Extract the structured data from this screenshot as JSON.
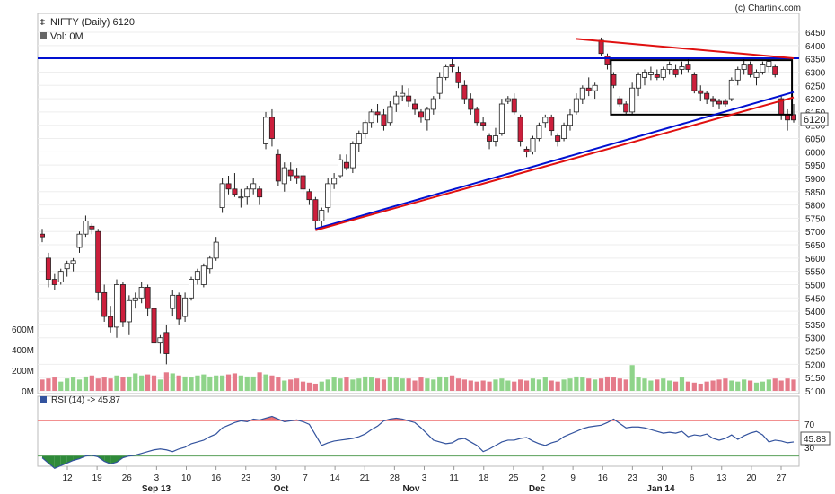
{
  "header": {
    "symbol_line": "NIFTY (Daily) 6120",
    "volume_line": "Vol: 0M",
    "credit": "(c) Chartink.com"
  },
  "rsi": {
    "legend": "RSI (14) -> 45.87",
    "current_badge": "45.88",
    "levels": [
      "70",
      "30"
    ]
  },
  "price_badge": "6120",
  "chart_data": [
    {
      "type": "candlestick",
      "title": "NIFTY (Daily) 6120",
      "y_ticks": [
        5100,
        5150,
        5200,
        5250,
        5300,
        5350,
        5400,
        5450,
        5500,
        5550,
        5600,
        5650,
        5700,
        5750,
        5800,
        5850,
        5900,
        5950,
        6000,
        6050,
        6100,
        6150,
        6200,
        6250,
        6300,
        6350,
        6400,
        6450
      ],
      "ylim": [
        5100,
        6470
      ],
      "x_ticks": [
        "12",
        "19",
        "26",
        "Sep 13",
        "10",
        "16",
        "23",
        "30",
        "Oct",
        "7",
        "14",
        "21",
        "28",
        "Nov",
        "3",
        "11",
        "18",
        "25",
        "Dec",
        "2",
        "9",
        "16",
        "23",
        "30",
        "6",
        "13",
        "20",
        "27",
        "Jan 14"
      ],
      "x_tick_labels_row1": [
        "12",
        "19",
        "26",
        "3",
        "10",
        "16",
        "23",
        "30",
        "7",
        "14",
        "21",
        "28",
        "3",
        "11",
        "18",
        "25",
        "2",
        "9",
        "16",
        "23",
        "30",
        "6",
        "13",
        "20",
        "27"
      ],
      "x_tick_labels_row2": [
        "Sep 13",
        "Oct",
        "Nov",
        "Dec",
        "Jan 14"
      ],
      "series": [
        {
          "values": [
            [
              5690,
              5710,
              5660,
              5680
            ],
            [
              5600,
              5620,
              5490,
              5520
            ],
            [
              5520,
              5540,
              5480,
              5500
            ],
            [
              5510,
              5560,
              5500,
              5550
            ],
            [
              5560,
              5590,
              5530,
              5580
            ],
            [
              5580,
              5600,
              5550,
              5590
            ],
            [
              5640,
              5700,
              5620,
              5690
            ],
            [
              5690,
              5760,
              5680,
              5740
            ],
            [
              5720,
              5730,
              5690,
              5710
            ],
            [
              5700,
              5710,
              5440,
              5470
            ],
            [
              5470,
              5500,
              5360,
              5380
            ],
            [
              5380,
              5420,
              5320,
              5340
            ],
            [
              5340,
              5520,
              5300,
              5500
            ],
            [
              5500,
              5510,
              5340,
              5360
            ],
            [
              5360,
              5460,
              5310,
              5440
            ],
            [
              5440,
              5470,
              5410,
              5450
            ],
            [
              5450,
              5510,
              5430,
              5490
            ],
            [
              5490,
              5500,
              5380,
              5410
            ],
            [
              5410,
              5420,
              5250,
              5280
            ],
            [
              5280,
              5310,
              5240,
              5300
            ],
            [
              5320,
              5350,
              5200,
              5240
            ],
            [
              5410,
              5480,
              5380,
              5460
            ],
            [
              5460,
              5470,
              5350,
              5370
            ],
            [
              5380,
              5470,
              5360,
              5450
            ],
            [
              5450,
              5530,
              5440,
              5520
            ],
            [
              5520,
              5560,
              5500,
              5550
            ],
            [
              5500,
              5580,
              5490,
              5570
            ],
            [
              5560,
              5610,
              5540,
              5600
            ],
            [
              5600,
              5680,
              5590,
              5660
            ],
            [
              5790,
              5900,
              5770,
              5880
            ],
            [
              5880,
              5910,
              5840,
              5860
            ],
            [
              5860,
              5920,
              5830,
              5840
            ],
            [
              5830,
              5860,
              5790,
              5830
            ],
            [
              5830,
              5870,
              5800,
              5860
            ],
            [
              5860,
              5900,
              5840,
              5880
            ],
            [
              5860,
              5870,
              5800,
              5830
            ],
            [
              6030,
              6150,
              6010,
              6130
            ],
            [
              6130,
              6160,
              6020,
              6050
            ],
            [
              5990,
              6010,
              5870,
              5890
            ],
            [
              5880,
              5960,
              5850,
              5940
            ],
            [
              5930,
              5960,
              5890,
              5910
            ],
            [
              5910,
              5940,
              5880,
              5900
            ],
            [
              5910,
              5930,
              5840,
              5860
            ],
            [
              5850,
              5860,
              5800,
              5820
            ],
            [
              5820,
              5830,
              5710,
              5740
            ],
            [
              5740,
              5790,
              5720,
              5780
            ],
            [
              5790,
              5900,
              5770,
              5880
            ],
            [
              5880,
              5920,
              5860,
              5900
            ],
            [
              5910,
              5990,
              5900,
              5970
            ],
            [
              5960,
              5990,
              5930,
              5940
            ],
            [
              5940,
              6040,
              5920,
              6030
            ],
            [
              6030,
              6080,
              6000,
              6070
            ],
            [
              6070,
              6120,
              6050,
              6110
            ],
            [
              6110,
              6160,
              6090,
              6150
            ],
            [
              6150,
              6180,
              6110,
              6140
            ],
            [
              6140,
              6160,
              6080,
              6100
            ],
            [
              6110,
              6190,
              6100,
              6170
            ],
            [
              6180,
              6230,
              6150,
              6210
            ],
            [
              6210,
              6250,
              6190,
              6220
            ],
            [
              6210,
              6240,
              6170,
              6190
            ],
            [
              6180,
              6200,
              6140,
              6160
            ],
            [
              6150,
              6160,
              6110,
              6130
            ],
            [
              6120,
              6170,
              6080,
              6160
            ],
            [
              6160,
              6210,
              6140,
              6200
            ],
            [
              6220,
              6300,
              6200,
              6280
            ],
            [
              6280,
              6330,
              6270,
              6320
            ],
            [
              6330,
              6350,
              6300,
              6320
            ],
            [
              6300,
              6320,
              6240,
              6260
            ],
            [
              6250,
              6270,
              6180,
              6200
            ],
            [
              6200,
              6220,
              6140,
              6160
            ],
            [
              6160,
              6170,
              6100,
              6110
            ],
            [
              6110,
              6130,
              6080,
              6100
            ],
            [
              6060,
              6070,
              6010,
              6040
            ],
            [
              6040,
              6090,
              6020,
              6060
            ],
            [
              6070,
              6200,
              6060,
              6180
            ],
            [
              6190,
              6210,
              6180,
              6200
            ],
            [
              6200,
              6220,
              6140,
              6150
            ],
            [
              6130,
              6140,
              6020,
              6040
            ],
            [
              6010,
              6020,
              5980,
              6000
            ],
            [
              6000,
              6060,
              5990,
              6050
            ],
            [
              6050,
              6110,
              6040,
              6100
            ],
            [
              6110,
              6140,
              6090,
              6130
            ],
            [
              6130,
              6140,
              6060,
              6080
            ],
            [
              6060,
              6070,
              6020,
              6040
            ],
            [
              6050,
              6110,
              6040,
              6100
            ],
            [
              6100,
              6160,
              6080,
              6140
            ],
            [
              6150,
              6220,
              6140,
              6200
            ],
            [
              6200,
              6250,
              6180,
              6240
            ],
            [
              6240,
              6280,
              6210,
              6230
            ],
            [
              6230,
              6260,
              6200,
              6250
            ],
            [
              6420,
              6430,
              6360,
              6370
            ],
            [
              6360,
              6370,
              6310,
              6330
            ],
            [
              6290,
              6300,
              6240,
              6250
            ],
            [
              6200,
              6210,
              6170,
              6180
            ],
            [
              6180,
              6190,
              6140,
              6150
            ],
            [
              6150,
              6260,
              6140,
              6240
            ],
            [
              6240,
              6300,
              6210,
              6290
            ],
            [
              6280,
              6310,
              6250,
              6300
            ],
            [
              6290,
              6320,
              6270,
              6300
            ],
            [
              6290,
              6310,
              6270,
              6280
            ],
            [
              6280,
              6320,
              6270,
              6310
            ],
            [
              6310,
              6340,
              6290,
              6330
            ],
            [
              6310,
              6330,
              6280,
              6290
            ],
            [
              6310,
              6340,
              6290,
              6320
            ],
            [
              6330,
              6350,
              6300,
              6310
            ],
            [
              6290,
              6300,
              6220,
              6230
            ],
            [
              6230,
              6250,
              6190,
              6220
            ],
            [
              6220,
              6230,
              6180,
              6200
            ],
            [
              6200,
              6210,
              6170,
              6190
            ],
            [
              6190,
              6200,
              6160,
              6180
            ],
            [
              6190,
              6200,
              6170,
              6180
            ],
            [
              6200,
              6280,
              6190,
              6270
            ],
            [
              6270,
              6320,
              6250,
              6310
            ],
            [
              6310,
              6350,
              6290,
              6330
            ],
            [
              6330,
              6340,
              6280,
              6290
            ],
            [
              6280,
              6310,
              6250,
              6300
            ],
            [
              6300,
              6340,
              6290,
              6330
            ],
            [
              6320,
              6350,
              6300,
              6340
            ],
            [
              6320,
              6330,
              6280,
              6290
            ],
            [
              6200,
              6210,
              6120,
              6140
            ],
            [
              6140,
              6160,
              6080,
              6120
            ],
            [
              6140,
              6180,
              6110,
              6120
            ]
          ]
        }
      ]
    },
    {
      "type": "bar",
      "title": "Vol: 0M",
      "y_ticks": [
        "0M",
        "200M",
        "400M",
        "600M"
      ],
      "ylim": [
        0,
        600
      ],
      "series": [
        {
          "values": [
            110,
            120,
            130,
            90,
            120,
            130,
            110,
            140,
            150,
            120,
            130,
            120,
            150,
            130,
            140,
            170,
            150,
            160,
            150,
            110,
            180,
            170,
            150,
            140,
            130,
            150,
            160,
            140,
            150,
            150,
            160,
            170,
            150,
            140,
            140,
            180,
            160,
            150,
            130,
            100,
            110,
            120,
            90,
            80,
            70,
            90,
            110,
            130,
            120,
            130,
            110,
            120,
            140,
            130,
            120,
            110,
            140,
            130,
            120,
            120,
            100,
            130,
            120,
            110,
            140,
            130,
            150,
            120,
            110,
            100,
            90,
            100,
            90,
            110,
            120,
            100,
            90,
            110,
            100,
            120,
            110,
            130,
            100,
            90,
            110,
            120,
            140,
            130,
            120,
            110,
            120,
            140,
            130,
            120,
            110,
            250,
            130,
            120,
            100,
            110,
            120,
            100,
            90,
            130,
            90,
            80,
            70,
            90,
            100,
            110,
            120,
            100,
            90,
            110,
            100,
            80,
            90,
            110,
            120,
            100,
            120,
            110
          ]
        }
      ]
    },
    {
      "type": "line",
      "title": "RSI (14) -> 45.87",
      "ylim": [
        0,
        100
      ],
      "levels": [
        70,
        30
      ],
      "series": [
        {
          "name": "RSI (14)",
          "values": [
            28,
            22,
            16,
            19,
            22,
            25,
            27,
            30,
            31,
            29,
            24,
            21,
            23,
            28,
            30,
            31,
            33,
            35,
            37,
            38,
            37,
            35,
            38,
            40,
            44,
            46,
            48,
            52,
            55,
            62,
            65,
            68,
            70,
            69,
            72,
            71,
            73,
            75,
            72,
            69,
            70,
            71,
            69,
            66,
            54,
            42,
            45,
            47,
            48,
            49,
            50,
            52,
            55,
            60,
            64,
            70,
            72,
            73,
            72,
            70,
            68,
            62,
            55,
            48,
            46,
            44,
            45,
            49,
            50,
            46,
            42,
            35,
            38,
            42,
            46,
            48,
            48,
            50,
            51,
            47,
            44,
            42,
            45,
            47,
            52,
            55,
            58,
            61,
            63,
            64,
            65,
            68,
            72,
            67,
            62,
            63,
            63,
            62,
            60,
            58,
            56,
            57,
            56,
            58,
            52,
            54,
            53,
            55,
            50,
            48,
            50,
            54,
            49,
            53,
            56,
            58,
            54,
            46,
            48,
            47,
            45,
            46
          ]
        }
      ]
    }
  ],
  "colors": {
    "up_candle_fill": "#ffffff",
    "down_candle_fill": "#cc1f3c",
    "volume_up": "#8fd48a",
    "volume_down": "#e57b8a",
    "rsi_line": "#33539e",
    "rsi_overbought_fill": "#f07070",
    "rsi_oversold_fill": "#2f8a3a",
    "resistance_line": "#0010d0",
    "trendline_red": "#e01010",
    "trendline_blue": "#0010d0"
  }
}
